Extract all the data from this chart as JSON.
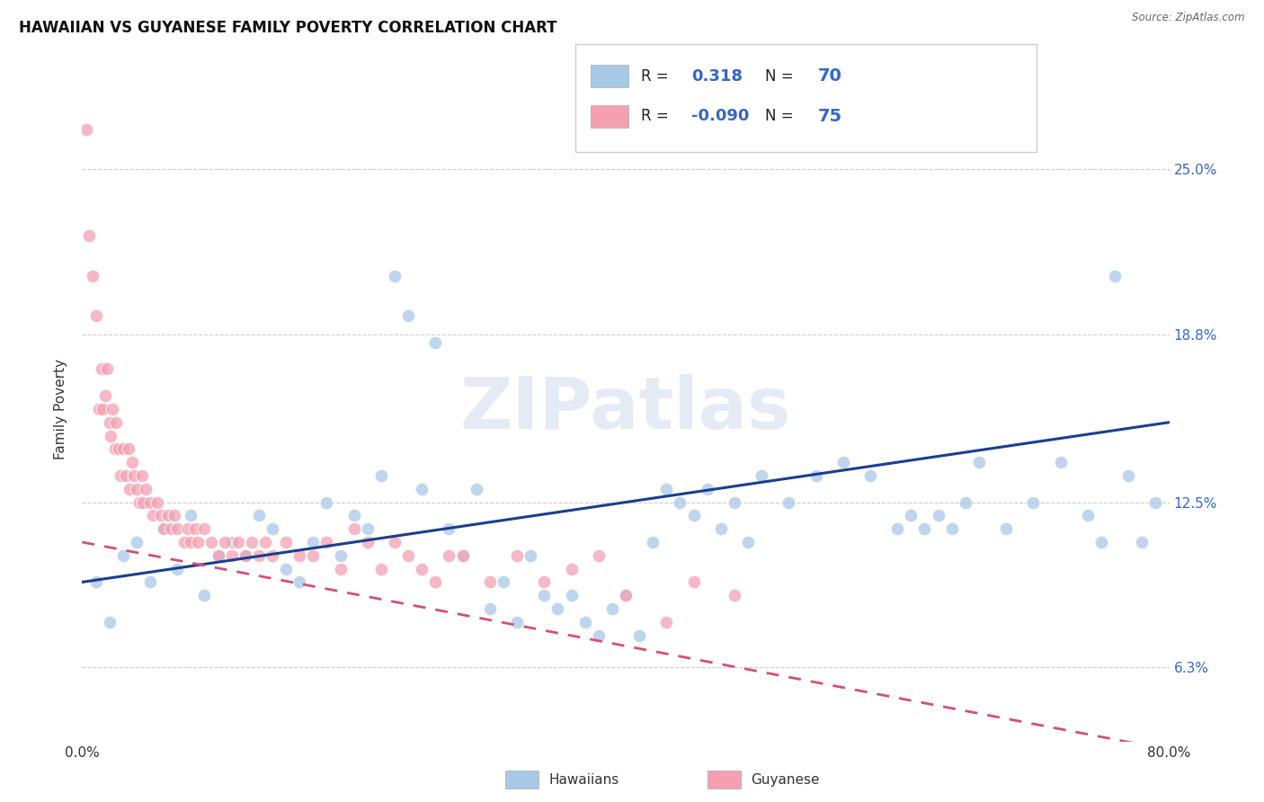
{
  "title": "HAWAIIAN VS GUYANESE FAMILY POVERTY CORRELATION CHART",
  "source": "Source: ZipAtlas.com",
  "ylabel": "Family Poverty",
  "ytick_labels": [
    "6.3%",
    "12.5%",
    "18.8%",
    "25.0%"
  ],
  "ytick_values": [
    6.3,
    12.5,
    18.8,
    25.0
  ],
  "watermark": "ZIPatlas",
  "hawaiian_color": "#a8c8e8",
  "guyanese_color": "#f4a0b0",
  "hawaiian_line_color": "#1a3e8f",
  "guyanese_line_color": "#d45070",
  "hawaiian_scatter": [
    [
      1.0,
      9.5
    ],
    [
      2.0,
      8.0
    ],
    [
      3.0,
      10.5
    ],
    [
      4.0,
      11.0
    ],
    [
      5.0,
      9.5
    ],
    [
      6.0,
      11.5
    ],
    [
      7.0,
      10.0
    ],
    [
      8.0,
      12.0
    ],
    [
      9.0,
      9.0
    ],
    [
      10.0,
      10.5
    ],
    [
      11.0,
      11.0
    ],
    [
      12.0,
      10.5
    ],
    [
      13.0,
      12.0
    ],
    [
      14.0,
      11.5
    ],
    [
      15.0,
      10.0
    ],
    [
      16.0,
      9.5
    ],
    [
      17.0,
      11.0
    ],
    [
      18.0,
      12.5
    ],
    [
      19.0,
      10.5
    ],
    [
      20.0,
      12.0
    ],
    [
      21.0,
      11.5
    ],
    [
      22.0,
      13.5
    ],
    [
      23.0,
      21.0
    ],
    [
      24.0,
      19.5
    ],
    [
      25.0,
      13.0
    ],
    [
      26.0,
      18.5
    ],
    [
      27.0,
      11.5
    ],
    [
      28.0,
      10.5
    ],
    [
      29.0,
      13.0
    ],
    [
      30.0,
      8.5
    ],
    [
      31.0,
      9.5
    ],
    [
      32.0,
      8.0
    ],
    [
      33.0,
      10.5
    ],
    [
      34.0,
      9.0
    ],
    [
      35.0,
      8.5
    ],
    [
      36.0,
      9.0
    ],
    [
      37.0,
      8.0
    ],
    [
      38.0,
      7.5
    ],
    [
      39.0,
      8.5
    ],
    [
      40.0,
      9.0
    ],
    [
      41.0,
      7.5
    ],
    [
      42.0,
      11.0
    ],
    [
      43.0,
      13.0
    ],
    [
      44.0,
      12.5
    ],
    [
      45.0,
      12.0
    ],
    [
      46.0,
      13.0
    ],
    [
      47.0,
      11.5
    ],
    [
      48.0,
      12.5
    ],
    [
      49.0,
      11.0
    ],
    [
      50.0,
      13.5
    ],
    [
      52.0,
      12.5
    ],
    [
      54.0,
      13.5
    ],
    [
      56.0,
      14.0
    ],
    [
      58.0,
      13.5
    ],
    [
      60.0,
      11.5
    ],
    [
      61.0,
      12.0
    ],
    [
      62.0,
      11.5
    ],
    [
      63.0,
      12.0
    ],
    [
      64.0,
      11.5
    ],
    [
      65.0,
      12.5
    ],
    [
      66.0,
      14.0
    ],
    [
      68.0,
      11.5
    ],
    [
      70.0,
      12.5
    ],
    [
      72.0,
      14.0
    ],
    [
      74.0,
      12.0
    ],
    [
      75.0,
      11.0
    ],
    [
      76.0,
      21.0
    ],
    [
      77.0,
      13.5
    ],
    [
      78.0,
      11.0
    ],
    [
      79.0,
      12.5
    ]
  ],
  "guyanese_scatter": [
    [
      0.3,
      26.5
    ],
    [
      0.5,
      22.5
    ],
    [
      0.8,
      21.0
    ],
    [
      1.0,
      19.5
    ],
    [
      1.2,
      16.0
    ],
    [
      1.4,
      17.5
    ],
    [
      1.5,
      16.0
    ],
    [
      1.7,
      16.5
    ],
    [
      1.8,
      17.5
    ],
    [
      2.0,
      15.5
    ],
    [
      2.1,
      15.0
    ],
    [
      2.2,
      16.0
    ],
    [
      2.4,
      14.5
    ],
    [
      2.5,
      15.5
    ],
    [
      2.7,
      14.5
    ],
    [
      2.8,
      13.5
    ],
    [
      3.0,
      14.5
    ],
    [
      3.2,
      13.5
    ],
    [
      3.4,
      14.5
    ],
    [
      3.5,
      13.0
    ],
    [
      3.7,
      14.0
    ],
    [
      3.8,
      13.5
    ],
    [
      4.0,
      13.0
    ],
    [
      4.2,
      12.5
    ],
    [
      4.4,
      13.5
    ],
    [
      4.5,
      12.5
    ],
    [
      4.7,
      13.0
    ],
    [
      5.0,
      12.5
    ],
    [
      5.2,
      12.0
    ],
    [
      5.5,
      12.5
    ],
    [
      5.8,
      12.0
    ],
    [
      6.0,
      11.5
    ],
    [
      6.3,
      12.0
    ],
    [
      6.5,
      11.5
    ],
    [
      6.8,
      12.0
    ],
    [
      7.0,
      11.5
    ],
    [
      7.5,
      11.0
    ],
    [
      7.8,
      11.5
    ],
    [
      8.0,
      11.0
    ],
    [
      8.3,
      11.5
    ],
    [
      8.5,
      11.0
    ],
    [
      9.0,
      11.5
    ],
    [
      9.5,
      11.0
    ],
    [
      10.0,
      10.5
    ],
    [
      10.5,
      11.0
    ],
    [
      11.0,
      10.5
    ],
    [
      11.5,
      11.0
    ],
    [
      12.0,
      10.5
    ],
    [
      12.5,
      11.0
    ],
    [
      13.0,
      10.5
    ],
    [
      13.5,
      11.0
    ],
    [
      14.0,
      10.5
    ],
    [
      15.0,
      11.0
    ],
    [
      16.0,
      10.5
    ],
    [
      17.0,
      10.5
    ],
    [
      18.0,
      11.0
    ],
    [
      19.0,
      10.0
    ],
    [
      20.0,
      11.5
    ],
    [
      21.0,
      11.0
    ],
    [
      22.0,
      10.0
    ],
    [
      23.0,
      11.0
    ],
    [
      24.0,
      10.5
    ],
    [
      25.0,
      10.0
    ],
    [
      26.0,
      9.5
    ],
    [
      27.0,
      10.5
    ],
    [
      28.0,
      10.5
    ],
    [
      30.0,
      9.5
    ],
    [
      32.0,
      10.5
    ],
    [
      34.0,
      9.5
    ],
    [
      36.0,
      10.0
    ],
    [
      38.0,
      10.5
    ],
    [
      40.0,
      9.0
    ],
    [
      43.0,
      8.0
    ],
    [
      45.0,
      9.5
    ],
    [
      48.0,
      9.0
    ]
  ],
  "xmin": 0,
  "xmax": 80,
  "ymin": 3.5,
  "ymax": 28.5,
  "background_color": "#ffffff",
  "grid_color": "#cccccc",
  "hawaiian_line_start_y": 9.5,
  "hawaiian_line_end_y": 15.5,
  "guyanese_line_start_y": 11.0,
  "guyanese_line_end_y": 3.2
}
